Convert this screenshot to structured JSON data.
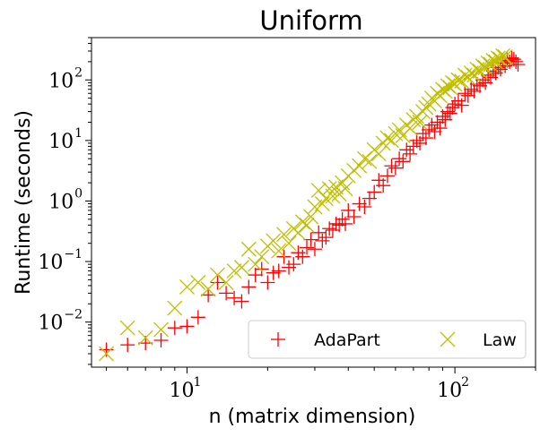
{
  "chart_data": {
    "type": "scatter",
    "title": "Uniform",
    "xlabel": "n (matrix dimension)",
    "ylabel": "Runtime (seconds)",
    "xscale": "log",
    "yscale": "log",
    "xlim": [
      4.4,
      200
    ],
    "ylim": [
      0.0018,
      500
    ],
    "xticks": [
      {
        "value": 10,
        "base": "10",
        "exp": "1"
      },
      {
        "value": 100,
        "base": "10",
        "exp": "2"
      }
    ],
    "yticks": [
      {
        "value": 0.01,
        "base": "10",
        "exp": "−2"
      },
      {
        "value": 0.1,
        "base": "10",
        "exp": "−1"
      },
      {
        "value": 1,
        "base": "10",
        "exp": "0"
      },
      {
        "value": 10,
        "base": "10",
        "exp": "1"
      },
      {
        "value": 100,
        "base": "10",
        "exp": "2"
      }
    ],
    "grid": false,
    "legend": {
      "placement": "lower-right",
      "columns": 2
    },
    "series": [
      {
        "name": "AdaPart",
        "marker": "plus",
        "color": "#ff0000",
        "x": [
          5,
          6,
          7,
          8,
          9,
          10,
          11,
          12,
          13,
          14,
          15,
          16,
          17,
          18,
          19,
          20,
          21,
          22,
          23,
          24,
          25,
          26,
          27,
          28,
          29,
          30,
          31,
          32,
          33,
          34,
          35,
          36,
          37,
          38,
          39,
          40,
          42,
          44,
          46,
          48,
          50,
          52,
          54,
          56,
          58,
          60,
          62,
          64,
          66,
          68,
          70,
          72,
          74,
          76,
          78,
          80,
          82,
          84,
          86,
          88,
          90,
          92,
          94,
          96,
          98,
          100,
          103,
          106,
          109,
          112,
          115,
          118,
          121,
          124,
          127,
          130,
          133,
          136,
          139,
          142,
          145,
          148,
          151,
          154,
          157,
          160,
          163,
          166,
          169,
          172
        ],
        "y": [
          0.0035,
          0.0042,
          0.0045,
          0.005,
          0.008,
          0.0085,
          0.012,
          0.028,
          0.045,
          0.03,
          0.025,
          0.022,
          0.038,
          0.06,
          0.075,
          0.045,
          0.065,
          0.07,
          0.12,
          0.08,
          0.09,
          0.14,
          0.12,
          0.17,
          0.23,
          0.16,
          0.3,
          0.22,
          0.25,
          0.35,
          0.33,
          0.42,
          0.4,
          0.5,
          0.42,
          0.7,
          0.55,
          0.9,
          0.8,
          1.1,
          1.4,
          2.2,
          1.8,
          2.6,
          3.8,
          3.5,
          5,
          4.5,
          7,
          6,
          8,
          10,
          9,
          13,
          11,
          15,
          18,
          14,
          20,
          16,
          25,
          22,
          30,
          28,
          35,
          40,
          45,
          38,
          60,
          55,
          70,
          65,
          85,
          80,
          100,
          90,
          120,
          110,
          140,
          130,
          160,
          150,
          190,
          170,
          210,
          200,
          230,
          220,
          200,
          180
        ]
      },
      {
        "name": "Law",
        "marker": "x",
        "color": "#bfbf00",
        "x": [
          5,
          6,
          7,
          8,
          9,
          10,
          11,
          12,
          13,
          14,
          15,
          16,
          17,
          18,
          19,
          20,
          21,
          22,
          23,
          24,
          25,
          26,
          27,
          28,
          29,
          30,
          31,
          32,
          33,
          34,
          35,
          36,
          37,
          38,
          39,
          40,
          42,
          44,
          46,
          48,
          50,
          52,
          54,
          56,
          58,
          60,
          62,
          64,
          66,
          68,
          70,
          72,
          74,
          76,
          78,
          80,
          82,
          84,
          86,
          88,
          90,
          92,
          94,
          96,
          98,
          100,
          103,
          106,
          109,
          112,
          115,
          118,
          121,
          124,
          127,
          130,
          133,
          136,
          139,
          142,
          145,
          148,
          151,
          154
        ],
        "y": [
          0.003,
          0.008,
          0.0055,
          0.0075,
          0.017,
          0.038,
          0.045,
          0.035,
          0.06,
          0.045,
          0.07,
          0.08,
          0.16,
          0.09,
          0.12,
          0.18,
          0.22,
          0.15,
          0.28,
          0.2,
          0.35,
          0.3,
          0.45,
          0.4,
          0.55,
          0.8,
          1.5,
          0.9,
          1.1,
          1.6,
          1.2,
          1.7,
          1.3,
          2.0,
          1.6,
          2.6,
          3.2,
          3.8,
          5,
          4.5,
          7,
          6,
          9,
          11,
          10,
          13,
          15,
          12,
          18,
          16,
          22,
          25,
          20,
          30,
          35,
          40,
          50,
          45,
          60,
          55,
          70,
          65,
          80,
          75,
          90,
          85,
          100,
          95,
          120,
          110,
          130,
          120,
          150,
          140,
          170,
          160,
          190,
          180,
          210,
          200,
          230,
          220,
          250,
          240
        ]
      }
    ]
  }
}
